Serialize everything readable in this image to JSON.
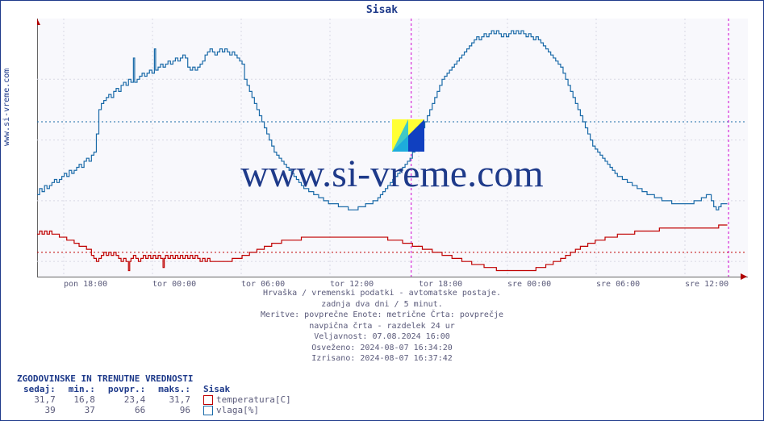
{
  "title": "Sisak",
  "y_axis_label": "www.si-vreme.com",
  "watermark_text": "www.si-vreme.com",
  "chart": {
    "type": "line",
    "background_color": "#f8f8fc",
    "grid_color": "#d8d8e4",
    "grid_dash": "2,3",
    "axis_color": "#666666",
    "ylim": [
      15,
      100
    ],
    "yticks": [
      20,
      40,
      60,
      80
    ],
    "ytick_fontsize": 10,
    "ytick_color": "#5a5a7a",
    "xticks": [
      "pon 18:00",
      "tor 00:00",
      "tor 06:00",
      "tor 12:00",
      "tor 18:00",
      "sre 00:00",
      "sre 06:00",
      "sre 12:00"
    ],
    "xtick_fontsize": 10,
    "xtick_color": "#5a5a7a",
    "x_count": 576,
    "now_marker_x": 560,
    "now_marker_color": "#d000d0",
    "day_marker_x": 303,
    "day_marker_color": "#d000d0",
    "ref_lines": [
      {
        "y": 23,
        "color": "#c00000",
        "dash": "2,3"
      },
      {
        "y": 66,
        "color": "#1a6aa8",
        "dash": "2,3"
      }
    ],
    "series": [
      {
        "name": "vlaga",
        "color": "#1a6aa8",
        "width": 1.2,
        "data": [
          42,
          42,
          44,
          44,
          43,
          43,
          45,
          45,
          44,
          44,
          45,
          45,
          46,
          46,
          47,
          47,
          46,
          46,
          47,
          47,
          48,
          48,
          49,
          49,
          48,
          48,
          50,
          50,
          49,
          49,
          50,
          50,
          51,
          51,
          52,
          52,
          51,
          51,
          53,
          53,
          54,
          54,
          53,
          53,
          55,
          55,
          56,
          56,
          62,
          62,
          70,
          70,
          72,
          72,
          73,
          73,
          74,
          74,
          75,
          75,
          74,
          74,
          76,
          76,
          77,
          77,
          76,
          76,
          78,
          78,
          79,
          79,
          78,
          78,
          80,
          80,
          79,
          79,
          87,
          79,
          79,
          80,
          80,
          81,
          81,
          82,
          82,
          81,
          81,
          82,
          82,
          83,
          83,
          82,
          82,
          90,
          83,
          83,
          84,
          84,
          85,
          85,
          84,
          84,
          85,
          85,
          86,
          86,
          85,
          85,
          86,
          86,
          87,
          87,
          86,
          86,
          87,
          87,
          88,
          88,
          87,
          87,
          84,
          84,
          83,
          83,
          84,
          84,
          83,
          83,
          84,
          84,
          85,
          85,
          86,
          86,
          88,
          88,
          89,
          89,
          90,
          90,
          89,
          89,
          88,
          88,
          89,
          89,
          90,
          90,
          89,
          89,
          90,
          90,
          89,
          89,
          88,
          88,
          89,
          89,
          88,
          88,
          87,
          87,
          86,
          86,
          85,
          85,
          80,
          80,
          78,
          78,
          76,
          76,
          74,
          74,
          72,
          72,
          70,
          70,
          68,
          68,
          66,
          66,
          64,
          64,
          62,
          62,
          60,
          60,
          58,
          58,
          56,
          56,
          55,
          55,
          54,
          54,
          53,
          53,
          52,
          52,
          51,
          51,
          50,
          50,
          49,
          49,
          48,
          48,
          47,
          47,
          46,
          46,
          45,
          45,
          44,
          44,
          44,
          44,
          43,
          43,
          43,
          43,
          42,
          42,
          42,
          42,
          41,
          41,
          41,
          41,
          40,
          40,
          40,
          40,
          39,
          39,
          39,
          39,
          39,
          39,
          39,
          39,
          38,
          38,
          38,
          38,
          38,
          38,
          38,
          38,
          37,
          37,
          37,
          37,
          37,
          37,
          37,
          37,
          38,
          38,
          38,
          38,
          38,
          38,
          39,
          39,
          39,
          39,
          39,
          39,
          40,
          40,
          40,
          40,
          41,
          41,
          42,
          42,
          43,
          43,
          44,
          44,
          45,
          45,
          46,
          46,
          47,
          47,
          48,
          48,
          49,
          49,
          50,
          50,
          51,
          51,
          52,
          52,
          53,
          53,
          54,
          54,
          56,
          56,
          58,
          58,
          60,
          60,
          62,
          62,
          64,
          64,
          66,
          66,
          68,
          68,
          70,
          70,
          72,
          72,
          74,
          74,
          76,
          76,
          78,
          78,
          80,
          80,
          81,
          81,
          82,
          82,
          83,
          83,
          84,
          84,
          85,
          85,
          86,
          86,
          87,
          87,
          88,
          88,
          89,
          89,
          90,
          90,
          91,
          91,
          92,
          92,
          93,
          93,
          94,
          94,
          93,
          93,
          94,
          94,
          95,
          95,
          94,
          94,
          95,
          95,
          96,
          96,
          95,
          95,
          96,
          96,
          95,
          95,
          94,
          94,
          95,
          95,
          94,
          94,
          95,
          95,
          96,
          96,
          95,
          95,
          96,
          96,
          95,
          95,
          96,
          96,
          95,
          95,
          94,
          94,
          95,
          95,
          94,
          94,
          93,
          93,
          94,
          94,
          93,
          93,
          92,
          92,
          91,
          91,
          90,
          90,
          89,
          89,
          88,
          88,
          87,
          87,
          86,
          86,
          85,
          85,
          84,
          84,
          82,
          82,
          80,
          80,
          78,
          78,
          76,
          76,
          74,
          74,
          72,
          72,
          70,
          70,
          68,
          68,
          66,
          66,
          64,
          64,
          62,
          62,
          60,
          60,
          58,
          58,
          57,
          57,
          56,
          56,
          55,
          55,
          54,
          54,
          53,
          53,
          52,
          52,
          51,
          51,
          50,
          50,
          49,
          49,
          48,
          48,
          48,
          48,
          47,
          47,
          47,
          47,
          46,
          46,
          46,
          46,
          45,
          45,
          45,
          45,
          44,
          44,
          44,
          44,
          43,
          43,
          43,
          43,
          42,
          42,
          42,
          42,
          42,
          42,
          41,
          41,
          41,
          41,
          41,
          41,
          40,
          40,
          40,
          40,
          40,
          40,
          40,
          40,
          39,
          39,
          39,
          39,
          39,
          39,
          39,
          39,
          39,
          39,
          39,
          39,
          39,
          39,
          39,
          39,
          39,
          39,
          40,
          40,
          40,
          40,
          40,
          40,
          41,
          41,
          41,
          41,
          42,
          42,
          42,
          42,
          40,
          40,
          38,
          38,
          37,
          37,
          38,
          38,
          39,
          39,
          39,
          39,
          39,
          39
        ]
      },
      {
        "name": "temperatura",
        "color": "#c00000",
        "width": 1.2,
        "data": [
          29,
          29,
          30,
          30,
          29,
          29,
          30,
          30,
          29,
          29,
          30,
          30,
          29,
          29,
          29,
          29,
          29,
          29,
          28,
          28,
          28,
          28,
          28,
          28,
          27,
          27,
          27,
          27,
          27,
          27,
          26,
          26,
          26,
          26,
          25,
          25,
          25,
          25,
          25,
          25,
          24,
          24,
          24,
          24,
          22,
          22,
          21,
          21,
          20,
          20,
          21,
          21,
          22,
          22,
          23,
          23,
          22,
          22,
          23,
          23,
          22,
          22,
          23,
          23,
          22,
          22,
          21,
          21,
          20,
          20,
          21,
          21,
          20,
          20,
          17,
          20,
          21,
          21,
          22,
          22,
          21,
          21,
          20,
          20,
          21,
          21,
          22,
          22,
          21,
          21,
          22,
          22,
          21,
          21,
          22,
          22,
          21,
          21,
          22,
          22,
          21,
          21,
          18,
          21,
          22,
          22,
          21,
          21,
          22,
          22,
          21,
          21,
          22,
          22,
          21,
          21,
          22,
          22,
          21,
          21,
          22,
          22,
          21,
          21,
          22,
          22,
          21,
          21,
          22,
          22,
          21,
          21,
          20,
          20,
          21,
          21,
          20,
          20,
          21,
          21,
          20,
          20,
          20,
          20,
          20,
          20,
          20,
          20,
          20,
          20,
          20,
          20,
          20,
          20,
          20,
          20,
          20,
          20,
          21,
          21,
          21,
          21,
          21,
          21,
          21,
          21,
          22,
          22,
          22,
          22,
          22,
          22,
          23,
          23,
          23,
          23,
          23,
          23,
          24,
          24,
          24,
          24,
          24,
          24,
          25,
          25,
          25,
          25,
          25,
          25,
          26,
          26,
          26,
          26,
          26,
          26,
          26,
          26,
          27,
          27,
          27,
          27,
          27,
          27,
          27,
          27,
          27,
          27,
          27,
          27,
          27,
          27,
          27,
          27,
          28,
          28,
          28,
          28,
          28,
          28,
          28,
          28,
          28,
          28,
          28,
          28,
          28,
          28,
          28,
          28,
          28,
          28,
          28,
          28,
          28,
          28,
          28,
          28,
          28,
          28,
          28,
          28,
          28,
          28,
          28,
          28,
          28,
          28,
          28,
          28,
          28,
          28,
          28,
          28,
          28,
          28,
          28,
          28,
          28,
          28,
          28,
          28,
          28,
          28,
          28,
          28,
          28,
          28,
          28,
          28,
          28,
          28,
          28,
          28,
          28,
          28,
          28,
          28,
          28,
          28,
          28,
          28,
          28,
          28,
          27,
          27,
          27,
          27,
          27,
          27,
          27,
          27,
          27,
          27,
          27,
          27,
          26,
          26,
          26,
          26,
          26,
          26,
          26,
          26,
          25,
          25,
          25,
          25,
          25,
          25,
          25,
          25,
          24,
          24,
          24,
          24,
          24,
          24,
          24,
          24,
          23,
          23,
          23,
          23,
          23,
          23,
          23,
          23,
          22,
          22,
          22,
          22,
          22,
          22,
          22,
          22,
          21,
          21,
          21,
          21,
          21,
          21,
          21,
          21,
          20,
          20,
          20,
          20,
          20,
          20,
          20,
          20,
          19,
          19,
          19,
          19,
          19,
          19,
          19,
          19,
          19,
          19,
          18,
          18,
          18,
          18,
          18,
          18,
          18,
          18,
          18,
          18,
          17,
          17,
          17,
          17,
          17,
          17,
          17,
          17,
          17,
          17,
          17,
          17,
          17,
          17,
          17,
          17,
          17,
          17,
          17,
          17,
          17,
          17,
          17,
          17,
          17,
          17,
          17,
          17,
          17,
          17,
          17,
          17,
          18,
          18,
          18,
          18,
          18,
          18,
          18,
          18,
          19,
          19,
          19,
          19,
          19,
          19,
          20,
          20,
          20,
          20,
          20,
          20,
          21,
          21,
          21,
          21,
          22,
          22,
          22,
          22,
          23,
          23,
          23,
          23,
          24,
          24,
          24,
          24,
          25,
          25,
          25,
          25,
          25,
          25,
          26,
          26,
          26,
          26,
          26,
          26,
          27,
          27,
          27,
          27,
          27,
          27,
          27,
          27,
          28,
          28,
          28,
          28,
          28,
          28,
          28,
          28,
          28,
          28,
          29,
          29,
          29,
          29,
          29,
          29,
          29,
          29,
          29,
          29,
          29,
          29,
          29,
          29,
          30,
          30,
          30,
          30,
          30,
          30,
          30,
          30,
          30,
          30,
          30,
          30,
          30,
          30,
          30,
          30,
          30,
          30,
          30,
          30,
          31,
          31,
          31,
          31,
          31,
          31,
          31,
          31,
          31,
          31,
          31,
          31,
          31,
          31,
          31,
          31,
          31,
          31,
          31,
          31,
          31,
          31,
          31,
          31,
          31,
          31,
          31,
          31,
          31,
          31,
          31,
          31,
          31,
          31,
          31,
          31,
          31,
          31,
          31,
          31,
          31,
          31,
          31,
          31,
          31,
          31,
          31,
          31,
          32,
          32,
          32,
          32,
          32,
          32,
          32,
          32
        ]
      }
    ]
  },
  "subtitle": {
    "lines": [
      "Hrvaška / vremenski podatki - avtomatske postaje.",
      "zadnja dva dni / 5 minut.",
      "Meritve: povprečne  Enote: metrične  Črta: povprečje",
      "navpična črta - razdelek 24 ur",
      "Veljavnost: 07.08.2024 16:00",
      "Osveženo: 2024-08-07 16:34:20",
      "Izrisano: 2024-08-07 16:37:42"
    ],
    "color": "#5a5a7a",
    "fontsize": 10
  },
  "stats": {
    "header": "ZGODOVINSKE IN TRENUTNE VREDNOSTI",
    "columns": [
      "sedaj:",
      "min.:",
      "povpr.:",
      "maks.:",
      "Sisak"
    ],
    "rows": [
      {
        "values": [
          "31,7",
          "16,8",
          "23,4",
          "31,7"
        ],
        "series_label": "temperatura[C]",
        "swatch": "#c00000"
      },
      {
        "values": [
          "39",
          "37",
          "66",
          "96"
        ],
        "series_label": "vlaga[%]",
        "swatch": "#1a6aa8"
      }
    ]
  }
}
